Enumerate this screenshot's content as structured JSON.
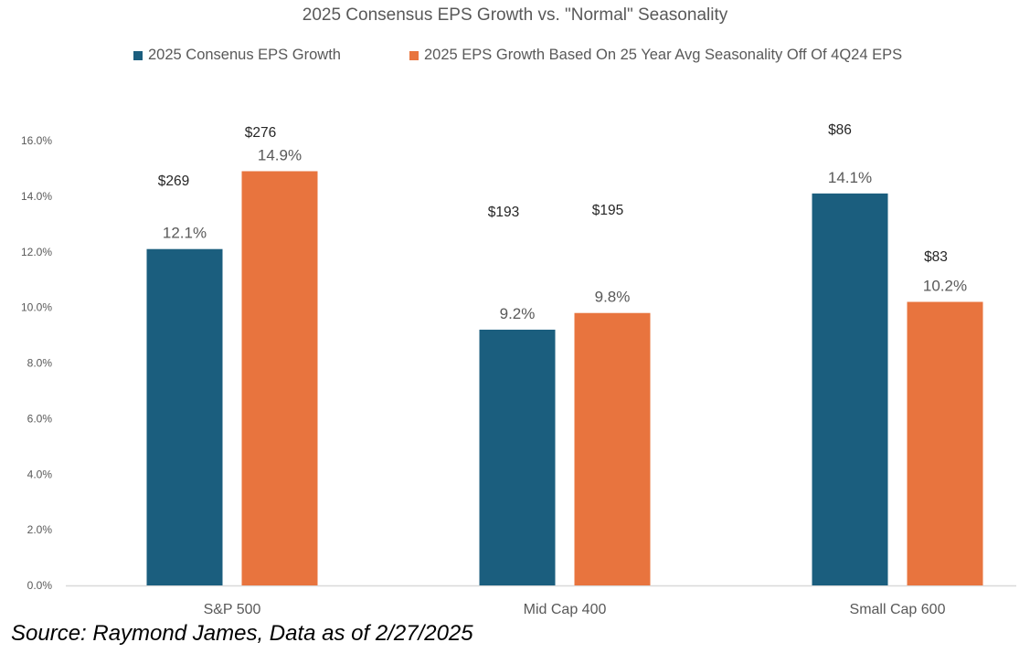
{
  "chart_data": {
    "type": "bar",
    "title": "2025 Consensus EPS Growth vs. \"Normal\" Seasonality",
    "xlabel": "",
    "ylabel": "",
    "ylim": [
      0,
      16
    ],
    "yticks": [
      "0.0%",
      "2.0%",
      "4.0%",
      "6.0%",
      "8.0%",
      "10.0%",
      "12.0%",
      "14.0%",
      "16.0%"
    ],
    "ytick_values": [
      0,
      2,
      4,
      6,
      8,
      10,
      12,
      14,
      16
    ],
    "grid": false,
    "legend_position": "top",
    "categories": [
      "S&P 500",
      "Mid Cap 400",
      "Small Cap 600"
    ],
    "series": [
      {
        "name": "2025 Consenus EPS Growth",
        "color": "#1B5E7E",
        "values": [
          12.1,
          9.2,
          14.1
        ],
        "value_labels": [
          "12.1%",
          "9.2%",
          "14.1%"
        ],
        "eps_labels": [
          "$269",
          "$193",
          "$86"
        ]
      },
      {
        "name": "2025 EPS Growth Based On 25 Year Avg Seasonality Off Of 4Q24 EPS",
        "color": "#E8743E",
        "values": [
          14.9,
          9.8,
          10.2
        ],
        "value_labels": [
          "14.9%",
          "9.8%",
          "10.2%"
        ],
        "eps_labels": [
          "$276",
          "$195",
          "$83"
        ]
      }
    ]
  },
  "source": "Source: Raymond James, Data as of 2/27/2025"
}
